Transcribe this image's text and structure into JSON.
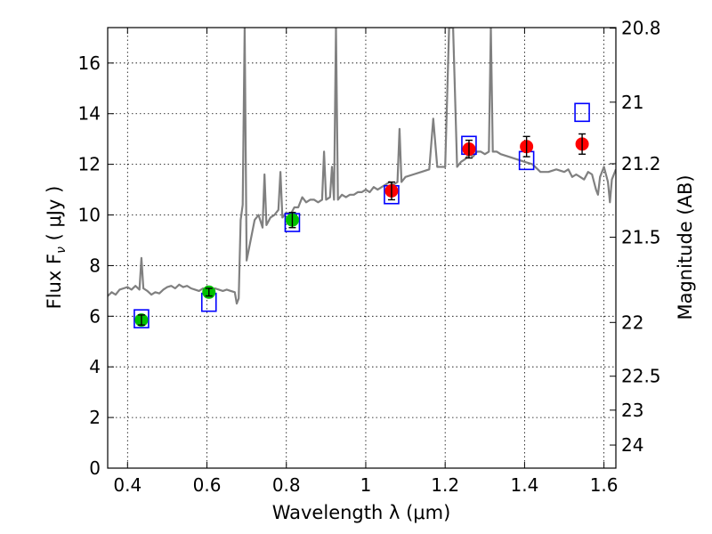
{
  "chart_data": {
    "type": "scatter",
    "title": "",
    "xlabel": "Wavelength  λ (μm)",
    "ylabel": "Flux  F",
    "ylabel_sub": "ν",
    "ylabel_unit": "  ( μJy )",
    "ylabel_right": "Magnitude (AB)",
    "xlim": [
      0.35,
      1.63
    ],
    "ylim": [
      0,
      17.4
    ],
    "grid": true,
    "x_ticks": [
      0.4,
      0.6,
      0.8,
      1.0,
      1.2,
      1.4,
      1.6
    ],
    "x_tick_labels": [
      "0.4",
      "0.6",
      "0.8",
      "1",
      "1.2",
      "1.4",
      "1.6"
    ],
    "y_ticks": [
      0,
      2,
      4,
      6,
      8,
      10,
      12,
      14,
      16
    ],
    "y_tick_labels": [
      "0",
      "2",
      "4",
      "6",
      "8",
      "10",
      "12",
      "14",
      "16"
    ],
    "right_ticks": [
      {
        "mag": 20.8,
        "label": "20.8"
      },
      {
        "mag": 21,
        "label": "21"
      },
      {
        "mag": 21.2,
        "label": "21.2"
      },
      {
        "mag": 21.5,
        "label": "21.5"
      },
      {
        "mag": 22,
        "label": "22"
      },
      {
        "mag": 22.5,
        "label": "22.5"
      },
      {
        "mag": 23,
        "label": "23"
      },
      {
        "mag": 24,
        "label": "24"
      }
    ],
    "series": [
      {
        "kind": "line",
        "color": "#808080",
        "points": [
          [
            0.35,
            6.8
          ],
          [
            0.36,
            6.95
          ],
          [
            0.37,
            6.85
          ],
          [
            0.38,
            7.05
          ],
          [
            0.39,
            7.1
          ],
          [
            0.4,
            7.15
          ],
          [
            0.41,
            7.05
          ],
          [
            0.42,
            7.2
          ],
          [
            0.43,
            7.05
          ],
          [
            0.435,
            8.3
          ],
          [
            0.44,
            7.1
          ],
          [
            0.45,
            7.0
          ],
          [
            0.46,
            6.85
          ],
          [
            0.47,
            6.95
          ],
          [
            0.48,
            6.9
          ],
          [
            0.49,
            7.05
          ],
          [
            0.5,
            7.15
          ],
          [
            0.51,
            7.2
          ],
          [
            0.52,
            7.1
          ],
          [
            0.53,
            7.25
          ],
          [
            0.54,
            7.15
          ],
          [
            0.55,
            7.2
          ],
          [
            0.56,
            7.1
          ],
          [
            0.57,
            7.05
          ],
          [
            0.58,
            7.0
          ],
          [
            0.59,
            7.1
          ],
          [
            0.6,
            7.0
          ],
          [
            0.61,
            6.95
          ],
          [
            0.62,
            7.1
          ],
          [
            0.63,
            7.05
          ],
          [
            0.64,
            7.0
          ],
          [
            0.65,
            7.05
          ],
          [
            0.66,
            7.0
          ],
          [
            0.67,
            6.95
          ],
          [
            0.675,
            6.5
          ],
          [
            0.68,
            6.7
          ],
          [
            0.685,
            9.8
          ],
          [
            0.69,
            10.4
          ],
          [
            0.695,
            17.4
          ],
          [
            0.7,
            8.2
          ],
          [
            0.71,
            9.0
          ],
          [
            0.72,
            9.8
          ],
          [
            0.73,
            10.0
          ],
          [
            0.74,
            9.5
          ],
          [
            0.745,
            11.6
          ],
          [
            0.75,
            9.6
          ],
          [
            0.76,
            9.9
          ],
          [
            0.77,
            10.0
          ],
          [
            0.78,
            10.2
          ],
          [
            0.785,
            11.7
          ],
          [
            0.79,
            9.9
          ],
          [
            0.8,
            10.1
          ],
          [
            0.81,
            10.0
          ],
          [
            0.82,
            10.3
          ],
          [
            0.83,
            10.3
          ],
          [
            0.84,
            10.7
          ],
          [
            0.85,
            10.5
          ],
          [
            0.86,
            10.6
          ],
          [
            0.87,
            10.6
          ],
          [
            0.88,
            10.5
          ],
          [
            0.89,
            10.6
          ],
          [
            0.895,
            12.5
          ],
          [
            0.9,
            10.6
          ],
          [
            0.91,
            10.7
          ],
          [
            0.915,
            11.9
          ],
          [
            0.92,
            10.6
          ],
          [
            0.925,
            17.4
          ],
          [
            0.93,
            10.6
          ],
          [
            0.94,
            10.8
          ],
          [
            0.95,
            10.7
          ],
          [
            0.96,
            10.8
          ],
          [
            0.97,
            10.8
          ],
          [
            0.98,
            10.9
          ],
          [
            0.99,
            10.9
          ],
          [
            1.0,
            11.0
          ],
          [
            1.01,
            10.9
          ],
          [
            1.02,
            11.1
          ],
          [
            1.03,
            11.0
          ],
          [
            1.04,
            11.1
          ],
          [
            1.05,
            11.2
          ],
          [
            1.06,
            11.3
          ],
          [
            1.07,
            11.2
          ],
          [
            1.08,
            11.3
          ],
          [
            1.085,
            13.4
          ],
          [
            1.09,
            11.3
          ],
          [
            1.1,
            11.5
          ],
          [
            1.12,
            11.6
          ],
          [
            1.14,
            11.7
          ],
          [
            1.16,
            11.8
          ],
          [
            1.17,
            13.8
          ],
          [
            1.18,
            11.9
          ],
          [
            1.2,
            11.9
          ],
          [
            1.21,
            17.4
          ],
          [
            1.22,
            17.4
          ],
          [
            1.23,
            11.9
          ],
          [
            1.24,
            12.1
          ],
          [
            1.25,
            12.2
          ],
          [
            1.26,
            12.4
          ],
          [
            1.27,
            12.3
          ],
          [
            1.28,
            12.5
          ],
          [
            1.29,
            12.5
          ],
          [
            1.3,
            12.4
          ],
          [
            1.31,
            12.5
          ],
          [
            1.315,
            17.4
          ],
          [
            1.32,
            12.5
          ],
          [
            1.33,
            12.5
          ],
          [
            1.34,
            12.4
          ],
          [
            1.36,
            12.3
          ],
          [
            1.38,
            12.2
          ],
          [
            1.4,
            12.1
          ],
          [
            1.42,
            12.0
          ],
          [
            1.44,
            11.7
          ],
          [
            1.46,
            11.7
          ],
          [
            1.48,
            11.8
          ],
          [
            1.5,
            11.7
          ],
          [
            1.51,
            11.8
          ],
          [
            1.52,
            11.5
          ],
          [
            1.53,
            11.6
          ],
          [
            1.54,
            11.5
          ],
          [
            1.55,
            11.4
          ],
          [
            1.56,
            11.7
          ],
          [
            1.57,
            11.6
          ],
          [
            1.58,
            11.0
          ],
          [
            1.585,
            10.8
          ],
          [
            1.59,
            11.5
          ],
          [
            1.6,
            11.9
          ],
          [
            1.61,
            11.3
          ],
          [
            1.615,
            10.5
          ],
          [
            1.62,
            11.4
          ],
          [
            1.63,
            11.8
          ]
        ]
      },
      {
        "kind": "markers",
        "marker": "square",
        "color": "#0000ff",
        "points": [
          [
            0.435,
            5.9
          ],
          [
            0.605,
            6.55
          ],
          [
            0.815,
            9.7
          ],
          [
            1.065,
            10.8
          ],
          [
            1.26,
            12.75
          ],
          [
            1.405,
            12.15
          ],
          [
            1.545,
            14.05
          ]
        ]
      },
      {
        "kind": "markers",
        "marker": "circle",
        "color": "#00c000",
        "points": [
          {
            "x": 0.435,
            "y": 5.85,
            "err": 0.2
          },
          {
            "x": 0.605,
            "y": 6.95,
            "err": 0.15
          },
          {
            "x": 0.815,
            "y": 9.8,
            "err": 0.3
          }
        ]
      },
      {
        "kind": "markers",
        "marker": "circle",
        "color": "#ff0000",
        "points": [
          {
            "x": 1.065,
            "y": 10.95,
            "err": 0.35
          },
          {
            "x": 1.26,
            "y": 12.6,
            "err": 0.35
          },
          {
            "x": 1.405,
            "y": 12.7,
            "err": 0.4
          },
          {
            "x": 1.545,
            "y": 12.8,
            "err": 0.4
          }
        ]
      }
    ]
  }
}
